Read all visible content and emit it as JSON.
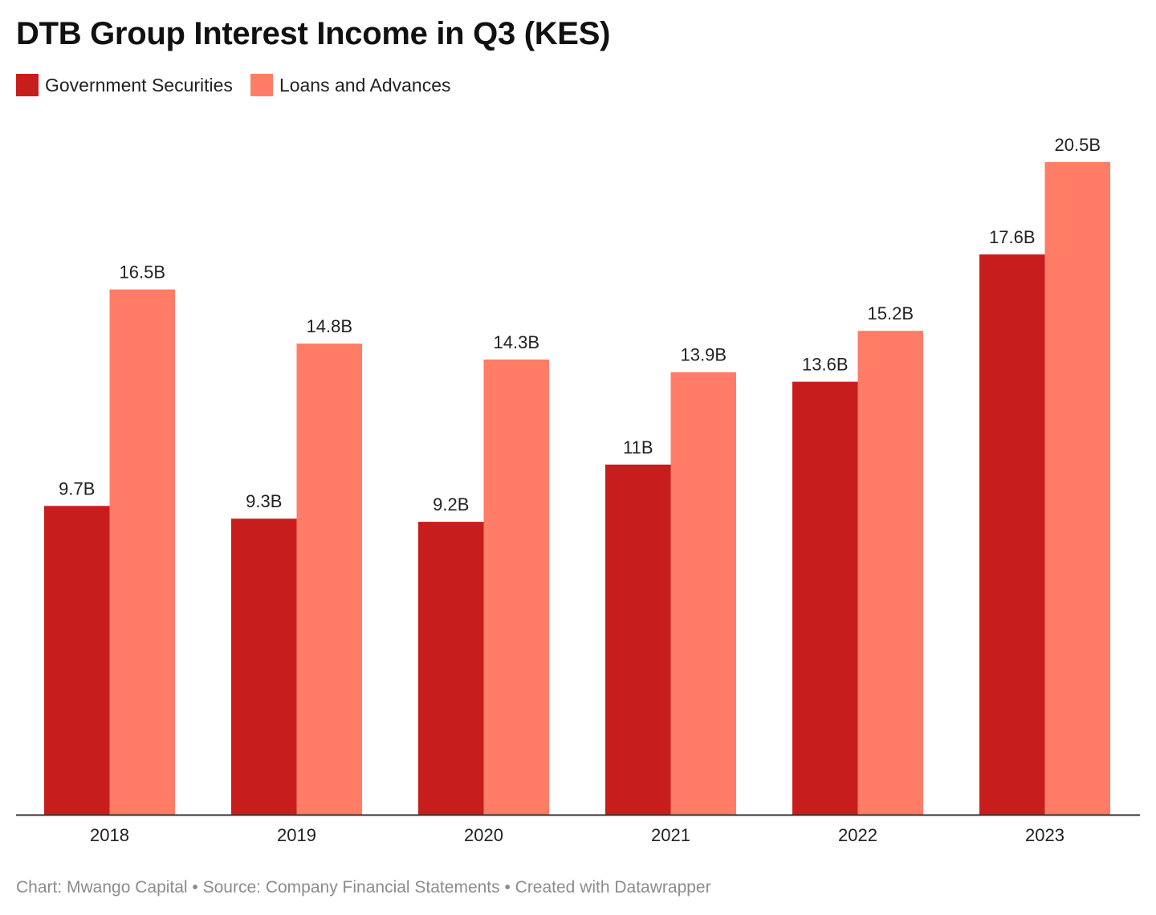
{
  "chart_data": {
    "type": "bar",
    "title": "DTB Group Interest Income in Q3 (KES)",
    "categories": [
      "2018",
      "2019",
      "2020",
      "2021",
      "2022",
      "2023"
    ],
    "series": [
      {
        "name": "Government Securities",
        "color": "#c71e1d",
        "values": [
          9.7,
          9.3,
          9.2,
          11,
          13.6,
          17.6
        ],
        "labels": [
          "9.7B",
          "9.3B",
          "9.2B",
          "11B",
          "13.6B",
          "17.6B"
        ]
      },
      {
        "name": "Loans and Advances",
        "color": "#ff7c66",
        "values": [
          16.5,
          14.8,
          14.3,
          13.9,
          15.2,
          20.5
        ],
        "labels": [
          "16.5B",
          "14.8B",
          "14.3B",
          "13.9B",
          "15.2B",
          "20.5B"
        ]
      }
    ],
    "xlabel": "",
    "ylabel": "",
    "ylim": [
      0,
      20.5
    ],
    "grid": false,
    "legend_position": "top-left",
    "data_labels": true
  },
  "footer": {
    "text": "Chart: Mwango Capital • Source: Company Financial Statements • Created with Datawrapper"
  }
}
